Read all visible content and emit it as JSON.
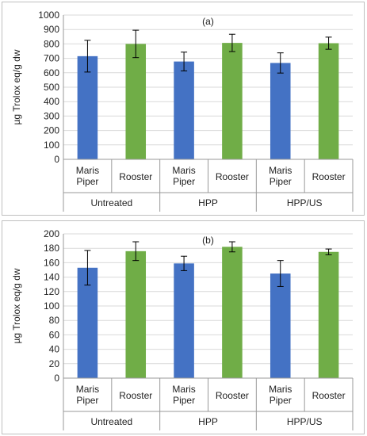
{
  "colors": {
    "blue": "#4472C4",
    "green": "#70AD47",
    "grid": "#d9d9d9",
    "axis": "#999999"
  },
  "chart_data": [
    {
      "type": "bar",
      "annotation": "(a)",
      "ylabel": "µg Trolox eq/g dw",
      "ylim": [
        0,
        1000
      ],
      "ytick_step": 100,
      "grid": true,
      "groups": [
        "Untreated",
        "HPP",
        "HPP/US"
      ],
      "categories": [
        [
          "Maris",
          "Piper"
        ],
        [
          "Rooster"
        ],
        [
          "Maris",
          "Piper"
        ],
        [
          "Rooster"
        ],
        [
          "Maris",
          "Piper"
        ],
        [
          "Rooster"
        ]
      ],
      "values": [
        715,
        800,
        678,
        807,
        668,
        805
      ],
      "errors": [
        110,
        95,
        65,
        60,
        70,
        42
      ],
      "bar_colors": [
        "#4472C4",
        "#70AD47",
        "#4472C4",
        "#70AD47",
        "#4472C4",
        "#70AD47"
      ]
    },
    {
      "type": "bar",
      "annotation": "(b)",
      "ylabel": "µg Trolox eq/g dw",
      "ylim": [
        0,
        200
      ],
      "ytick_step": 20,
      "grid": true,
      "groups": [
        "Untreated",
        "HPP",
        "HPP/US"
      ],
      "categories": [
        [
          "Maris",
          "Piper"
        ],
        [
          "Rooster"
        ],
        [
          "Maris",
          "Piper"
        ],
        [
          "Rooster"
        ],
        [
          "Maris",
          "Piper"
        ],
        [
          "Rooster"
        ]
      ],
      "values": [
        153,
        176,
        159,
        182,
        145,
        175
      ],
      "errors": [
        24,
        13,
        10,
        7,
        18,
        4
      ],
      "bar_colors": [
        "#4472C4",
        "#70AD47",
        "#4472C4",
        "#70AD47",
        "#4472C4",
        "#70AD47"
      ]
    }
  ]
}
